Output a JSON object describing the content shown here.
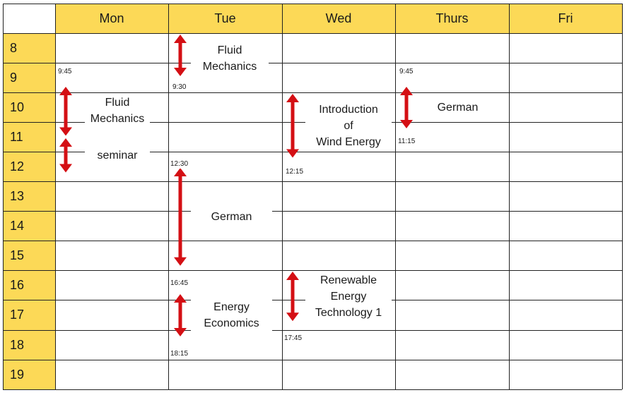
{
  "days": [
    "Mon",
    "Tue",
    "Wed",
    "Thurs",
    "Fri"
  ],
  "hours": [
    "8",
    "9",
    "10",
    "11",
    "12",
    "13",
    "14",
    "15",
    "16",
    "17",
    "18",
    "19"
  ],
  "colors": {
    "header": "#fcd957",
    "arrow": "#d40f14",
    "grid_line": "#222222"
  },
  "events": [
    {
      "id": "mon-fluid",
      "day": "Mon",
      "title": [
        "Fluid",
        "Mechanics"
      ],
      "start_label": "9:45",
      "end_label": "",
      "start": 9.75,
      "end": 11.5
    },
    {
      "id": "mon-seminar",
      "day": "Mon",
      "title": [
        "seminar"
      ],
      "start_label": "",
      "end_label": "",
      "start": 11.5,
      "end": 12.75
    },
    {
      "id": "tue-fluid",
      "day": "Tue",
      "title": [
        "Fluid",
        "Mechanics"
      ],
      "start_label": "",
      "end_label": "9:30",
      "start": 8.0,
      "end": 9.5
    },
    {
      "id": "tue-german",
      "day": "Tue",
      "title": [
        "German"
      ],
      "start_label": "12:30",
      "end_label": "",
      "start": 12.5,
      "end": 15.9
    },
    {
      "id": "tue-energy-econ",
      "day": "Tue",
      "title": [
        "Energy",
        "Economics"
      ],
      "start_label": "16:45",
      "end_label": "18:15",
      "start": 16.75,
      "end": 18.25
    },
    {
      "id": "wed-wind",
      "day": "Wed",
      "title": [
        "Introduction",
        "of",
        "Wind Energy"
      ],
      "start_label": "",
      "end_label": "12:15",
      "start": 10.0,
      "end": 12.25
    },
    {
      "id": "wed-renewable",
      "day": "Wed",
      "title": [
        "Renewable",
        "Energy",
        "Technology 1"
      ],
      "start_label": "",
      "end_label": "17:45",
      "start": 16.0,
      "end": 17.75
    },
    {
      "id": "thu-german",
      "day": "Thurs",
      "title": [
        "German"
      ],
      "start_label": "9:45",
      "end_label": "11:15",
      "start": 9.75,
      "end": 11.25
    }
  ]
}
